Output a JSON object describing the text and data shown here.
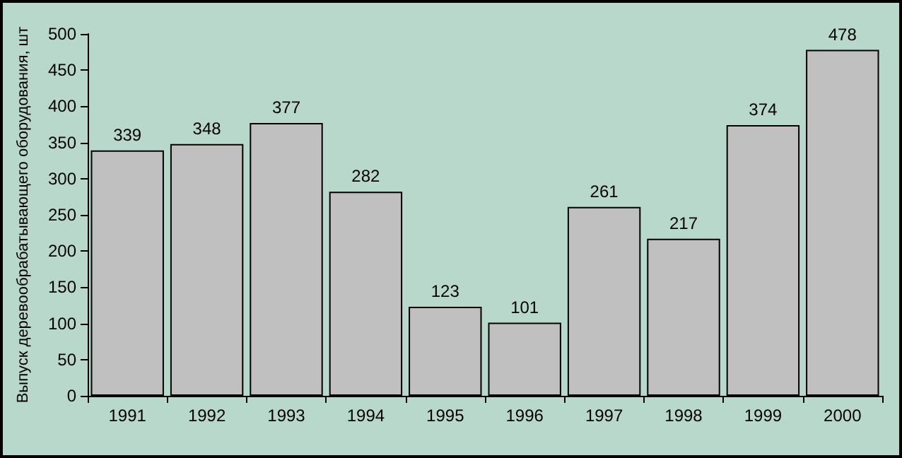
{
  "chart_data": {
    "type": "bar",
    "ylabel": "Выпуск деревообрабатывающего оборудования, шт",
    "categories": [
      "1991",
      "1992",
      "1993",
      "1994",
      "1995",
      "1996",
      "1997",
      "1998",
      "1999",
      "2000"
    ],
    "values": [
      339,
      348,
      377,
      282,
      123,
      101,
      261,
      217,
      374,
      478
    ],
    "color": "#c0c0c0",
    "ylim": [
      0,
      500
    ],
    "yticks": [
      0,
      50,
      100,
      150,
      200,
      250,
      300,
      350,
      400,
      450,
      500
    ],
    "grid": false,
    "data_labels": true
  }
}
